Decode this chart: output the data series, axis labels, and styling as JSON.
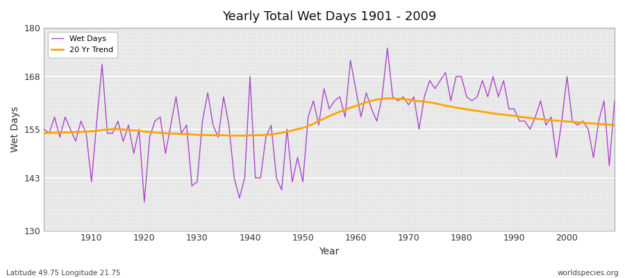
{
  "title": "Yearly Total Wet Days 1901 - 2009",
  "xlabel": "Year",
  "ylabel": "Wet Days",
  "lat_lon_label": "Latitude 49.75 Longitude 21.75",
  "source_label": "worldspecies.org",
  "ylim": [
    130,
    180
  ],
  "yticks": [
    130,
    143,
    155,
    168,
    180
  ],
  "line_color": "#AA44CC",
  "trend_color": "#FFA500",
  "fig_bg_color": "#FFFFFF",
  "plot_bg_color": "#E8E8E8",
  "years": [
    1901,
    1902,
    1903,
    1904,
    1905,
    1906,
    1907,
    1908,
    1909,
    1910,
    1911,
    1912,
    1913,
    1914,
    1915,
    1916,
    1917,
    1918,
    1919,
    1920,
    1921,
    1922,
    1923,
    1924,
    1925,
    1926,
    1927,
    1928,
    1929,
    1930,
    1931,
    1932,
    1933,
    1934,
    1935,
    1936,
    1937,
    1938,
    1939,
    1940,
    1941,
    1942,
    1943,
    1944,
    1945,
    1946,
    1947,
    1948,
    1949,
    1950,
    1951,
    1952,
    1953,
    1954,
    1955,
    1956,
    1957,
    1958,
    1959,
    1960,
    1961,
    1962,
    1963,
    1964,
    1965,
    1966,
    1967,
    1968,
    1969,
    1970,
    1971,
    1972,
    1973,
    1974,
    1975,
    1976,
    1977,
    1978,
    1979,
    1980,
    1981,
    1982,
    1983,
    1984,
    1985,
    1986,
    1987,
    1988,
    1989,
    1990,
    1991,
    1992,
    1993,
    1994,
    1995,
    1996,
    1997,
    1998,
    1999,
    2000,
    2001,
    2002,
    2003,
    2004,
    2005,
    2006,
    2007,
    2008,
    2009
  ],
  "wet_days": [
    155,
    154,
    158,
    153,
    158,
    155,
    152,
    157,
    154,
    142,
    157,
    171,
    154,
    154,
    157,
    152,
    156,
    149,
    155,
    137,
    153,
    157,
    158,
    149,
    156,
    163,
    154,
    156,
    141,
    142,
    157,
    164,
    156,
    153,
    163,
    156,
    143,
    138,
    143,
    168,
    143,
    143,
    153,
    156,
    143,
    140,
    155,
    142,
    148,
    142,
    158,
    162,
    156,
    165,
    160,
    162,
    163,
    158,
    172,
    165,
    158,
    164,
    160,
    157,
    163,
    175,
    163,
    162,
    163,
    161,
    163,
    155,
    163,
    167,
    165,
    167,
    169,
    162,
    168,
    168,
    163,
    162,
    163,
    167,
    163,
    168,
    163,
    167,
    160,
    160,
    157,
    157,
    155,
    158,
    162,
    156,
    158,
    148,
    157,
    168,
    157,
    156,
    157,
    155,
    148,
    157,
    162,
    146,
    162
  ],
  "trend": [
    154.0,
    154.1,
    154.1,
    154.2,
    154.2,
    154.2,
    154.3,
    154.3,
    154.4,
    154.5,
    154.6,
    154.8,
    154.9,
    155.0,
    155.0,
    154.9,
    154.8,
    154.7,
    154.6,
    154.4,
    154.3,
    154.2,
    154.1,
    154.0,
    153.9,
    153.9,
    153.8,
    153.8,
    153.7,
    153.6,
    153.6,
    153.5,
    153.5,
    153.5,
    153.5,
    153.4,
    153.4,
    153.4,
    153.4,
    153.5,
    153.5,
    153.5,
    153.6,
    153.7,
    153.9,
    154.1,
    154.4,
    154.7,
    155.0,
    155.3,
    155.8,
    156.3,
    157.0,
    157.6,
    158.2,
    158.8,
    159.3,
    159.8,
    160.3,
    160.7,
    161.2,
    161.6,
    162.0,
    162.3,
    162.5,
    162.6,
    162.6,
    162.5,
    162.4,
    162.3,
    162.1,
    161.9,
    161.8,
    161.6,
    161.4,
    161.1,
    160.8,
    160.6,
    160.3,
    160.1,
    159.9,
    159.7,
    159.5,
    159.3,
    159.1,
    158.9,
    158.7,
    158.6,
    158.4,
    158.3,
    158.1,
    157.9,
    157.8,
    157.6,
    157.5,
    157.3,
    157.2,
    157.1,
    157.0,
    156.9,
    156.8,
    156.7,
    156.6,
    156.5,
    156.4,
    156.3,
    156.2,
    156.1,
    156.0
  ]
}
